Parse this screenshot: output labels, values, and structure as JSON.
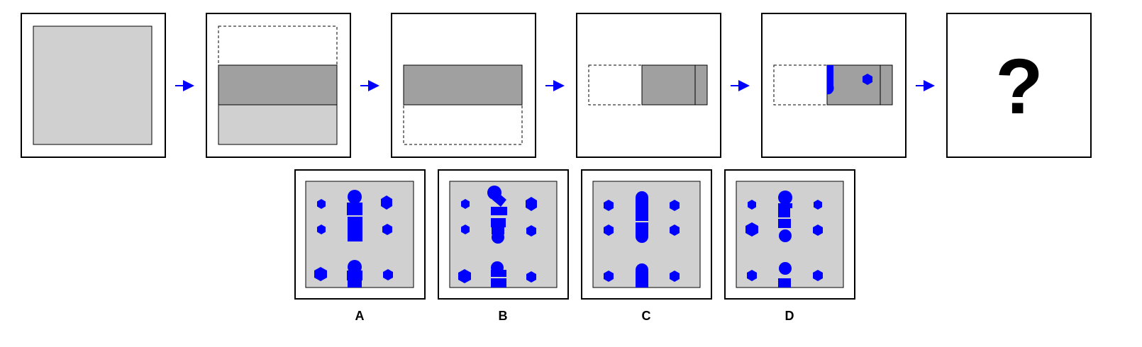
{
  "question_mark": "?",
  "options": [
    {
      "label": "A"
    },
    {
      "label": "B"
    },
    {
      "label": "C"
    },
    {
      "label": "D"
    }
  ],
  "colors": {
    "paper_light": "#d0d0d0",
    "paper_dark": "#a0a0a0",
    "hole": "#0000ff",
    "arrow": "#0000ff",
    "border": "#000000"
  }
}
